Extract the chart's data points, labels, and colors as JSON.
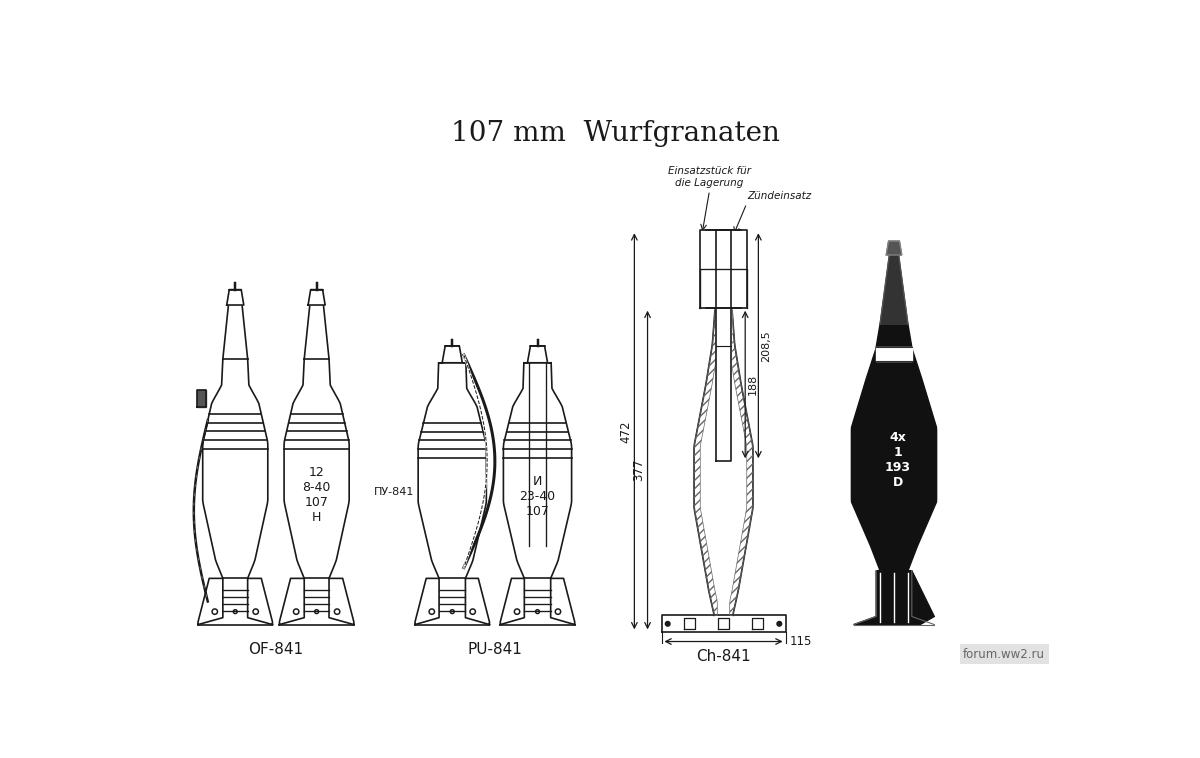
{
  "title": "107 mm  Wurfgranaten",
  "title_fontsize": 20,
  "background_color": "#ffffff",
  "label_OF841": "OF-841",
  "label_PU841": "PU-841",
  "label_Ch841": "Ch-841",
  "text_OF": "12\n8-40\n107\nH",
  "text_PU_left": "ПУ-841",
  "text_PU_right": "И\n23-40\n107",
  "dim_472": "472",
  "dim_377": "377",
  "dim_208": "208,5",
  "dim_188": "188",
  "dim_115": "115",
  "label_Einsatz": "Einsatzstück für\ndie Lagerung",
  "label_Zuend": "Zündeinsatz",
  "text_Ch_body": "4х\n1\n193\nD",
  "watermark": "forum.ww2.ru",
  "line_color": "#1a1a1a",
  "dark_fill": "#111111"
}
